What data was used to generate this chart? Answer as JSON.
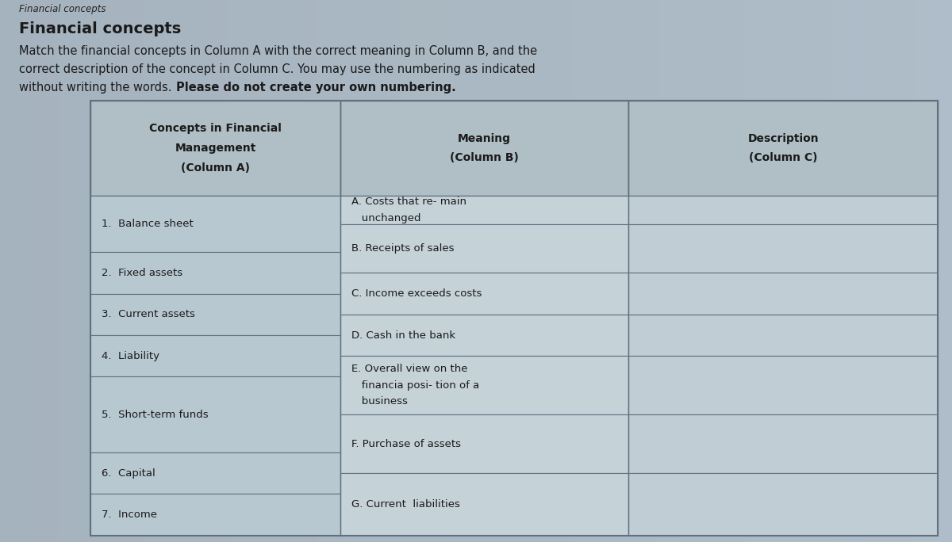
{
  "title_small": "Financial concepts",
  "title_bold": "Financial concepts",
  "instr_line1": "Match the financial concepts in Column A with the correct meaning in Column B, and the",
  "instr_line2": "correct description of the concept in Column C. You may use the numbering as indicated",
  "instr_line3_normal": "without writing the words. ",
  "instr_line3_bold": "Please do not create your own numbering.",
  "col_a_h1": "Concepts in Financial",
  "col_a_h2": "Management",
  "col_a_h3": "(Column A)",
  "col_b_h1": "Meaning",
  "col_b_h2": "(Column B)",
  "col_c_h1": "Description",
  "col_c_h2": "(Column C)",
  "col_a_items": [
    "1.  Balance sheet",
    "2.  Fixed assets",
    "3.  Current assets",
    "4.  Liability",
    "5.  Short-term funds",
    "6.  Capital",
    "7.  Income"
  ],
  "col_b_items": [
    "A. Costs that re- main\n   unchanged",
    "B. Receipts of sales",
    "C. Income exceeds costs",
    "D. Cash in the bank",
    "E. Overall view on the\n   financia posi- tion of a\n   business",
    "F. Purchase of assets",
    "G. Current  liabilities"
  ],
  "bg_color": "#aab8c2",
  "header_cell_color": "#b0bec5",
  "col_a_cell_color": "#b8c8d0",
  "col_b_cell_color": "#c5d2d8",
  "col_c_cell_color": "#c0cdd4",
  "border_color": "#607080",
  "text_color": "#1a1a1a",
  "title_small_color": "#222222",
  "font_size_title_small": 8.5,
  "font_size_title_bold": 14,
  "font_size_instr": 10.5,
  "font_size_header": 10,
  "font_size_cell": 9.5
}
